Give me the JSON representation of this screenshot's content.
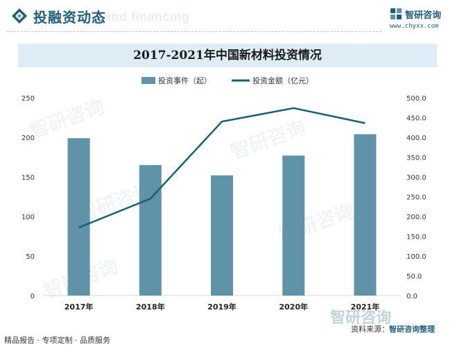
{
  "header": {
    "title": "投融资动态",
    "bg_text": "and financing",
    "icon": "diamond-icon"
  },
  "brand": {
    "name": "智研咨询",
    "url": "www.chyxx.com",
    "icon": "brand-logo-icon"
  },
  "watermark_text": "智研咨询",
  "footer": {
    "left": "精品报告 · 专项定制 · 品质服务",
    "source_label": "资料来源：",
    "source_value": "智研咨询整理"
  },
  "colors": {
    "bar": "#6093a8",
    "line": "#155d78",
    "title_bar": "#deedf5",
    "accent": "#1f5f7a"
  },
  "chart_data": {
    "type": "bar",
    "title": "2017-2021年中国新材料投资情况",
    "categories": [
      "2017年",
      "2018年",
      "2019年",
      "2020年",
      "2021年"
    ],
    "series": [
      {
        "name": "投资事件（起）",
        "type": "bar",
        "axis": "left",
        "values": [
          199,
          165,
          152,
          177,
          204
        ]
      },
      {
        "name": "投资金额（亿元）",
        "type": "line",
        "axis": "right",
        "values": [
          172,
          245,
          440,
          474,
          436
        ]
      }
    ],
    "y_left": {
      "min": 0,
      "max": 250,
      "ticks": [
        "0",
        "50",
        "100",
        "150",
        "200",
        "250"
      ]
    },
    "y_right": {
      "min": 0,
      "max": 500,
      "ticks": [
        "0.0",
        "50.0",
        "100.0",
        "150.0",
        "200.0",
        "250.0",
        "300.0",
        "350.0",
        "400.0",
        "450.0",
        "500.0"
      ]
    },
    "legend_position": "top-center",
    "grid": false
  }
}
